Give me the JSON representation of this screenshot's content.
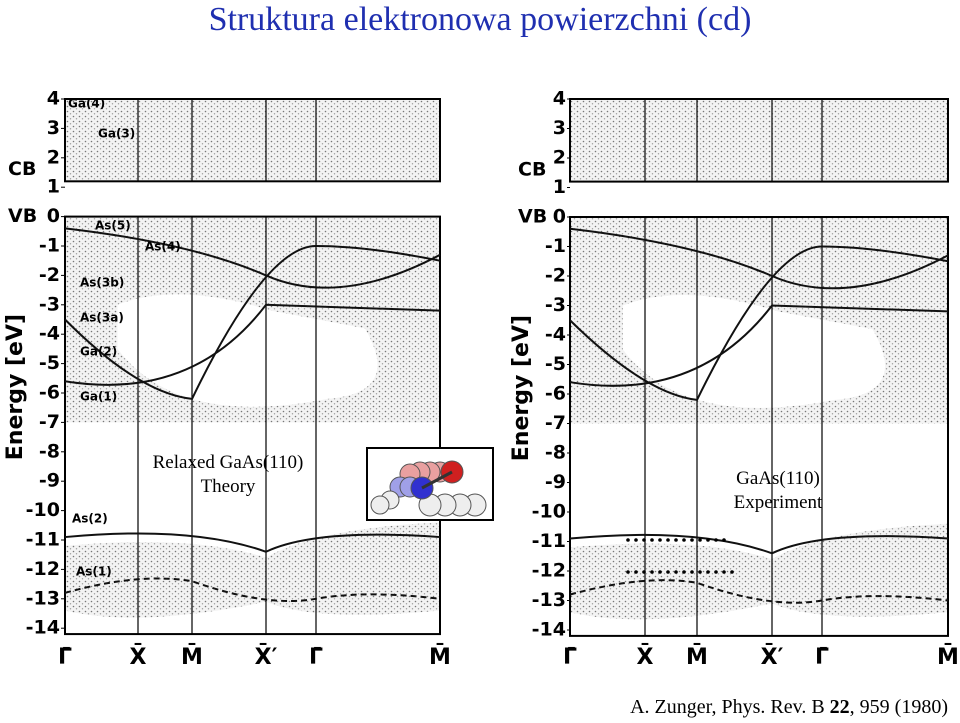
{
  "title": "Struktura elektronowa powierzchni (cd)",
  "left_panel": {
    "caption": [
      "Relaxed GaAs(110)",
      "Theory"
    ],
    "cb_label": "CB",
    "vb_label": "VB",
    "y_axis_label": "Energy [eV]",
    "energy_ticks": [
      "4",
      "3",
      "2",
      "1",
      "0",
      "-1",
      "-2",
      "-3",
      "-4",
      "-5",
      "-6",
      "-7",
      "-8",
      "-9",
      "-10",
      "-11",
      "-12",
      "-13",
      "-14"
    ],
    "k_points": [
      "Γ̄",
      "X̄",
      "M̄",
      "X̄′",
      "Γ̄",
      "M̄"
    ],
    "state_labels": [
      "Ga(4)",
      "Ga(3)",
      "As(5)",
      "As(4)",
      "As(3b)",
      "As(3a)",
      "Ga(2)",
      "Ga(1)",
      "As(2)",
      "As(1)"
    ]
  },
  "right_panel": {
    "caption": [
      "GaAs(110)",
      "Experiment"
    ],
    "cb_label": "CB",
    "vb_label": "VB",
    "y_axis_label": "Energy [eV]",
    "energy_ticks": [
      "4",
      "3",
      "2",
      "1",
      "0",
      "-1",
      "-2",
      "-3",
      "-4",
      "-5",
      "-6",
      "-7",
      "-8",
      "-9",
      "-10",
      "-11",
      "-12",
      "-13",
      "-14"
    ],
    "k_points": [
      "Γ̄",
      "X̄",
      "M̄",
      "X̄′",
      "Γ̄",
      "M̄"
    ]
  },
  "citation": {
    "before": "A. Zunger, Phys. Rev. B ",
    "volume": "22",
    "after": ", 959 (1980)"
  }
}
